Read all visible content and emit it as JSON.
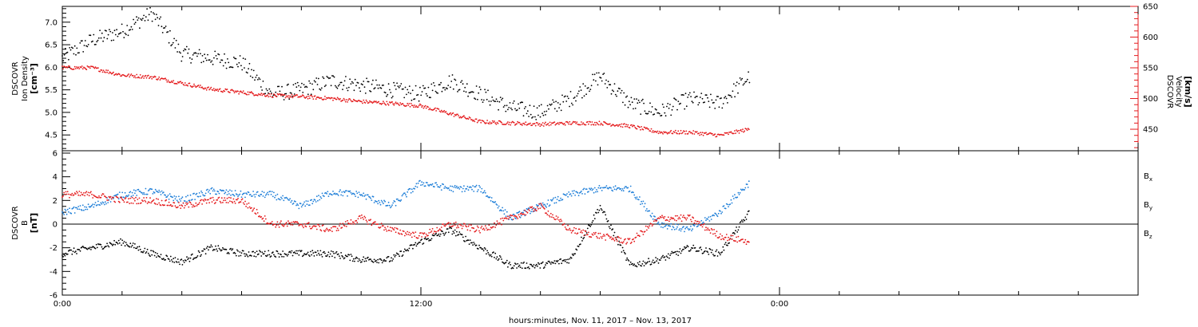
{
  "chart_data": [
    {
      "type": "scatter",
      "panel": "plasma",
      "ylabel_left": [
        "DSCOVR",
        "Ion Density",
        "[cm⁻³]"
      ],
      "ylabel_right": [
        "DSCOVR",
        "Velocity",
        "[km/s]"
      ],
      "ylim_left": [
        4.15,
        7.35
      ],
      "ylim_right": [
        415,
        650
      ],
      "yticks_left": [
        "4.5",
        "5.0",
        "5.5",
        "6.0",
        "6.5",
        "7.0"
      ],
      "yticks_right": [
        "450",
        "500",
        "550",
        "600",
        "650"
      ],
      "colors": {
        "density": "#000000",
        "velocity": "#e41a1c"
      },
      "series": [
        {
          "name": "density",
          "x": [
            0,
            1,
            2,
            3,
            4,
            5,
            6,
            7,
            8,
            9,
            10,
            11,
            12,
            13,
            14,
            15,
            16,
            17,
            18,
            19,
            20,
            21,
            22,
            23
          ],
          "y": [
            6.2,
            6.6,
            6.8,
            7.2,
            6.3,
            6.2,
            6.1,
            5.4,
            5.5,
            5.7,
            5.6,
            5.5,
            5.4,
            5.7,
            5.4,
            5.1,
            5.0,
            5.3,
            5.8,
            5.2,
            5.0,
            5.3,
            5.2,
            5.8
          ]
        },
        {
          "name": "velocity",
          "x": [
            0,
            1,
            2,
            3,
            4,
            5,
            6,
            7,
            8,
            9,
            10,
            11,
            12,
            13,
            14,
            15,
            16,
            17,
            18,
            19,
            20,
            21,
            22,
            23
          ],
          "y": [
            550,
            550,
            538,
            535,
            525,
            515,
            510,
            505,
            503,
            500,
            495,
            492,
            488,
            475,
            462,
            460,
            458,
            460,
            460,
            455,
            445,
            445,
            440,
            450
          ]
        }
      ]
    },
    {
      "type": "scatter",
      "panel": "magnetic-field",
      "ylabel_left": [
        "DSCOVR",
        "B",
        "[nT]"
      ],
      "ylim": [
        -6,
        6.2
      ],
      "yticks": [
        "-6",
        "-4",
        "-2",
        "0",
        "2",
        "4",
        "6"
      ],
      "zero_line": true,
      "series": [
        {
          "name": "B_x",
          "color": "#000000",
          "x": [
            0,
            1,
            2,
            3,
            4,
            5,
            6,
            7,
            8,
            9,
            10,
            11,
            12,
            13,
            14,
            15,
            16,
            17,
            18,
            19,
            20,
            21,
            22,
            23
          ],
          "y": [
            -2.5,
            -2.0,
            -1.5,
            -2.5,
            -3.2,
            -2.0,
            -2.5,
            -2.5,
            -2.5,
            -2.5,
            -3.0,
            -3.0,
            -1.5,
            -0.5,
            -2.0,
            -3.5,
            -3.5,
            -3.0,
            1.5,
            -3.5,
            -3.0,
            -2.0,
            -2.5,
            1.0
          ]
        },
        {
          "name": "B_y",
          "color": "#1f7fd8",
          "x": [
            0,
            1,
            2,
            3,
            4,
            5,
            6,
            7,
            8,
            9,
            10,
            11,
            12,
            13,
            14,
            15,
            16,
            17,
            18,
            19,
            20,
            21,
            22,
            23
          ],
          "y": [
            1.0,
            1.5,
            2.5,
            2.8,
            2.0,
            2.8,
            2.5,
            2.5,
            1.5,
            2.7,
            2.5,
            1.5,
            3.5,
            3.0,
            3.0,
            0.5,
            1.5,
            2.5,
            3.0,
            3.0,
            0.0,
            -0.5,
            1.0,
            3.5
          ]
        },
        {
          "name": "B_z",
          "color": "#e41a1c",
          "x": [
            0,
            1,
            2,
            3,
            4,
            5,
            6,
            7,
            8,
            9,
            10,
            11,
            12,
            13,
            14,
            15,
            16,
            17,
            18,
            19,
            20,
            21,
            22,
            23
          ],
          "y": [
            2.5,
            2.5,
            2.0,
            2.0,
            1.5,
            2.0,
            2.0,
            0.0,
            0.0,
            -0.5,
            0.5,
            -0.5,
            -1.0,
            0.0,
            -0.5,
            0.5,
            1.5,
            -0.5,
            -1.0,
            -1.5,
            0.5,
            0.5,
            -1.0,
            -1.5
          ]
        }
      ],
      "legend": [
        {
          "label": "B",
          "sub": "x",
          "color": "#000000"
        },
        {
          "label": "B",
          "sub": "y",
          "color": "#1f7fd8"
        },
        {
          "label": "B",
          "sub": "z",
          "color": "#e41a1c"
        }
      ]
    }
  ],
  "x_axis": {
    "tick_labels": [
      "0:00",
      "12:00",
      "0:00"
    ],
    "xlabel": "hours:minutes, Nov. 11, 2017 – Nov. 13, 2017",
    "xlim_hours": [
      0,
      36
    ]
  }
}
